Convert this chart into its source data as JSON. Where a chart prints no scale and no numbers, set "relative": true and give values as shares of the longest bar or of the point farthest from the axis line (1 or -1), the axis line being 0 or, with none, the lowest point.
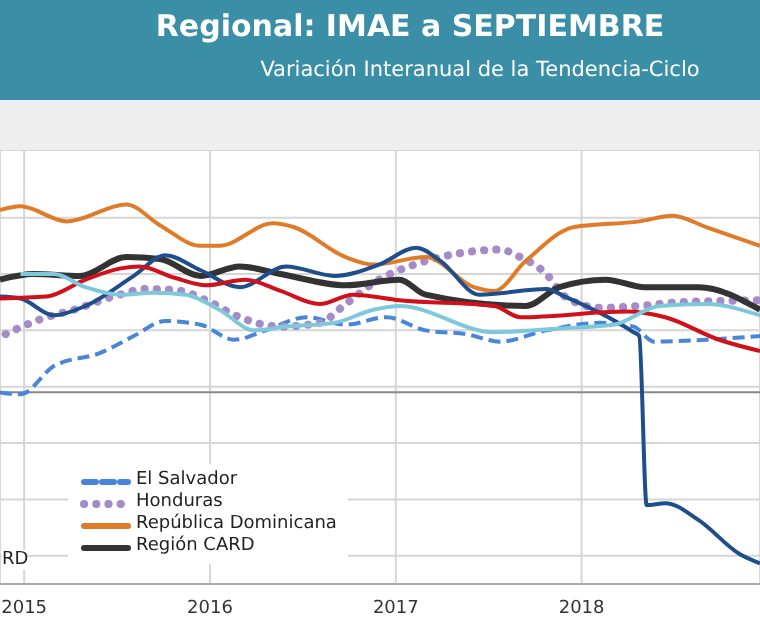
{
  "chart_data": {
    "type": "line",
    "title": "Regional: IMAE a SEPTIEMBRE",
    "subtitle": "Variación Interanual de la Tendencia-Ciclo",
    "relative": true,
    "grid": true,
    "legend": "bottom left",
    "xlim": [
      2014.87,
      2018.96
    ],
    "xticks": [
      2015,
      2016,
      2017,
      2018
    ],
    "annotations": [
      "RD"
    ],
    "series": [
      {
        "name": "El Salvador",
        "color": "#4a86d8",
        "line_style": "dashed",
        "x": [
          2014.87,
          2014.98,
          2015.16,
          2015.41,
          2015.59,
          2015.76,
          2015.95,
          2016.13,
          2016.3,
          2016.52,
          2016.73,
          2016.95,
          2017.16,
          2017.38,
          2017.56,
          2017.81,
          2018.1,
          2018.28,
          2018.39,
          2018.67,
          2018.96
        ],
        "values": [
          0,
          -0.01,
          0.14,
          0.21,
          0.3,
          0.38,
          0.36,
          0.28,
          0.33,
          0.4,
          0.36,
          0.4,
          0.33,
          0.31,
          0.27,
          0.33,
          0.37,
          0.35,
          0.27,
          0.28,
          0.3
        ]
      },
      {
        "name": "Honduras",
        "color": "#a58cc8",
        "line_style": "dotted",
        "x": [
          2014.9,
          2015.09,
          2015.27,
          2015.48,
          2015.66,
          2015.84,
          2015.98,
          2016.16,
          2016.38,
          2016.59,
          2016.73,
          2016.91,
          2017.1,
          2017.34,
          2017.56,
          2017.67,
          2017.81,
          2017.91,
          2018.1,
          2018.31,
          2018.53,
          2018.96
        ],
        "values": [
          0.31,
          0.39,
          0.44,
          0.51,
          0.55,
          0.54,
          0.49,
          0.4,
          0.35,
          0.37,
          0.47,
          0.6,
          0.68,
          0.74,
          0.76,
          0.72,
          0.63,
          0.51,
          0.45,
          0.46,
          0.48,
          0.49
        ]
      },
      {
        "name": "República Dominicana",
        "color": "#e07b2a",
        "line_style": "solid",
        "x": [
          2014.87,
          2014.98,
          2015.23,
          2015.55,
          2015.73,
          2015.95,
          2016.05,
          2016.34,
          2016.45,
          2016.73,
          2016.88,
          2017.16,
          2017.42,
          2017.53,
          2017.7,
          2017.96,
          2018.31,
          2018.49,
          2018.67,
          2018.96
        ],
        "values": [
          0.97,
          0.99,
          0.91,
          1,
          0.89,
          0.78,
          0.78,
          0.9,
          0.88,
          0.72,
          0.68,
          0.72,
          0.56,
          0.54,
          0.7,
          0.88,
          0.91,
          0.94,
          0.88,
          0.78
        ]
      },
      {
        "name": "Región CARD",
        "color": "#333333",
        "line_style": "solid",
        "x": [
          2014.87,
          2015.05,
          2015.3,
          2015.55,
          2015.73,
          2015.95,
          2016.16,
          2016.38,
          2016.73,
          2017.02,
          2017.16,
          2017.7,
          2017.88,
          2018.13,
          2018.34,
          2018.63,
          2018.96
        ],
        "values": [
          0.6,
          0.63,
          0.62,
          0.72,
          0.71,
          0.62,
          0.67,
          0.63,
          0.57,
          0.6,
          0.52,
          0.46,
          0.56,
          0.6,
          0.56,
          0.56,
          0.44
        ]
      },
      {
        "color": "#1f4e8c",
        "line_style": "solid",
        "x": [
          2014.87,
          2014.98,
          2015.16,
          2015.33,
          2015.59,
          2015.76,
          2015.95,
          2016.16,
          2016.41,
          2016.67,
          2016.91,
          2017.11,
          2017.24,
          2017.45,
          2017.81,
          2017.91,
          2018.28,
          2018.31,
          2018.35,
          2018.45,
          2018.63,
          2018.85,
          2018.96
        ],
        "values": [
          0.51,
          0.5,
          0.41,
          0.46,
          0.62,
          0.73,
          0.65,
          0.56,
          0.67,
          0.62,
          0.68,
          0.77,
          0.7,
          0.52,
          0.55,
          0.51,
          0.32,
          0.3,
          -0.6,
          -0.59,
          -0.68,
          -0.86,
          -0.91
        ]
      },
      {
        "color": "#d0101a",
        "line_style": "solid",
        "x": [
          2014.87,
          2015.12,
          2015.33,
          2015.52,
          2015.62,
          2015.81,
          2015.98,
          2016.19,
          2016.38,
          2016.59,
          2016.77,
          2017.02,
          2017.53,
          2017.67,
          2018.24,
          2018.45,
          2018.74,
          2018.96
        ],
        "values": [
          0.5,
          0.51,
          0.6,
          0.66,
          0.67,
          0.61,
          0.57,
          0.6,
          0.54,
          0.47,
          0.52,
          0.49,
          0.46,
          0.4,
          0.43,
          0.4,
          0.28,
          0.22
        ]
      },
      {
        "color": "#7fc8dc",
        "line_style": "solid",
        "x": [
          2014.98,
          2015.16,
          2015.33,
          2015.52,
          2015.7,
          2015.87,
          2016.05,
          2016.24,
          2016.41,
          2016.67,
          2016.88,
          2017.02,
          2017.53,
          2017.88,
          2018.17,
          2018.42,
          2018.67,
          2018.96
        ],
        "values": [
          0.63,
          0.63,
          0.56,
          0.52,
          0.53,
          0.52,
          0.44,
          0.33,
          0.35,
          0.37,
          0.44,
          0.46,
          0.32,
          0.34,
          0.36,
          0.46,
          0.47,
          0.41
        ]
      }
    ]
  }
}
